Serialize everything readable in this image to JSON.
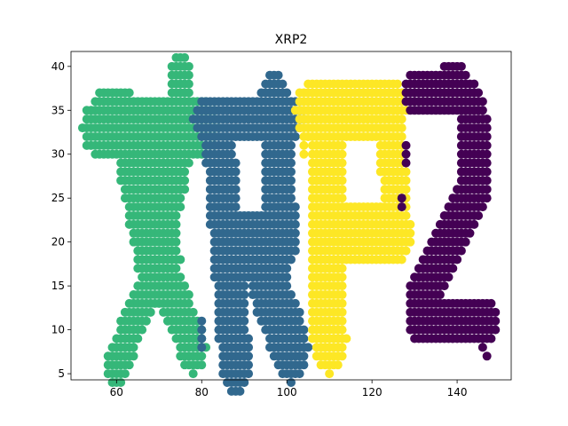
{
  "chart_data": {
    "type": "scatter",
    "title": "XRP2",
    "xlabel": "",
    "ylabel": "",
    "xlim": [
      49.3,
      152.7
    ],
    "ylim": [
      4.3,
      41.7
    ],
    "xticks": [
      60,
      80,
      100,
      120,
      140
    ],
    "yticks": [
      5,
      10,
      15,
      20,
      25,
      30,
      35,
      40
    ],
    "grid": false,
    "legend": "none",
    "series": [
      {
        "color": "#35b779",
        "strokes": [
          {
            "x0": 55,
            "y0": 33,
            "x1": 81,
            "y1": 33,
            "w": 6
          },
          {
            "x0": 56,
            "y0": 36,
            "x1": 63,
            "y1": 36,
            "w": 2
          },
          {
            "x0": 65,
            "y0": 30,
            "x1": 70,
            "y1": 18,
            "w": 10
          },
          {
            "x0": 75,
            "y0": 32,
            "x1": 70,
            "y1": 18,
            "w": 6
          },
          {
            "x0": 75,
            "y0": 39,
            "x1": 76,
            "y1": 34,
            "w": 5
          },
          {
            "x0": 70,
            "y0": 18,
            "x1": 60,
            "y1": 6,
            "w": 5
          },
          {
            "x0": 70,
            "y0": 18,
            "x1": 78,
            "y1": 8,
            "w": 6
          }
        ],
        "spacing": 1
      },
      {
        "color": "#31688e",
        "strokes": [
          {
            "x0": 80,
            "y0": 34,
            "x1": 102,
            "y1": 34,
            "w": 4
          },
          {
            "x0": 84,
            "y0": 32,
            "x1": 88,
            "y1": 6,
            "w": 7
          },
          {
            "x0": 97,
            "y0": 36,
            "x1": 99,
            "y1": 20,
            "w": 7
          },
          {
            "x0": 88,
            "y0": 20,
            "x1": 99,
            "y1": 20,
            "w": 6
          },
          {
            "x0": 95,
            "y0": 16,
            "x1": 101,
            "y1": 8,
            "w": 8
          },
          {
            "x0": 80,
            "y0": 11,
            "x1": 80,
            "y1": 8,
            "w": 1
          }
        ],
        "spacing": 1
      },
      {
        "color": "#fde725",
        "strokes": [
          {
            "x0": 105,
            "y0": 35,
            "x1": 125,
            "y1": 35,
            "w": 6
          },
          {
            "x0": 110,
            "y0": 38,
            "x1": 126,
            "y1": 38,
            "w": 1
          },
          {
            "x0": 109,
            "y0": 33,
            "x1": 110,
            "y1": 9,
            "w": 8
          },
          {
            "x0": 124,
            "y0": 34,
            "x1": 126,
            "y1": 22,
            "w": 6
          },
          {
            "x0": 110,
            "y0": 21,
            "x1": 126,
            "y1": 21,
            "w": 7
          },
          {
            "x0": 103,
            "y0": 36,
            "x1": 104,
            "y1": 30,
            "w": 1
          }
        ],
        "spacing": 1
      },
      {
        "color": "#440154",
        "strokes": [
          {
            "x0": 130,
            "y0": 37,
            "x1": 140,
            "y1": 37,
            "w": 5
          },
          {
            "x0": 140,
            "y0": 38,
            "x1": 144,
            "y1": 35,
            "w": 5
          },
          {
            "x0": 144,
            "y0": 33,
            "x1": 144,
            "y1": 27,
            "w": 7
          },
          {
            "x0": 144,
            "y0": 26,
            "x1": 132,
            "y1": 14,
            "w": 7
          },
          {
            "x0": 131,
            "y0": 11,
            "x1": 147,
            "y1": 11,
            "w": 5
          },
          {
            "x0": 137,
            "y0": 40,
            "x1": 140,
            "y1": 40,
            "w": 1
          },
          {
            "x0": 146,
            "y0": 8,
            "x1": 147,
            "y1": 7,
            "w": 1
          },
          {
            "x0": 128,
            "y0": 31,
            "x1": 128,
            "y1": 29,
            "w": 1
          },
          {
            "x0": 127,
            "y0": 25,
            "x1": 127,
            "y1": 24,
            "w": 1
          }
        ],
        "spacing": 1
      }
    ]
  }
}
